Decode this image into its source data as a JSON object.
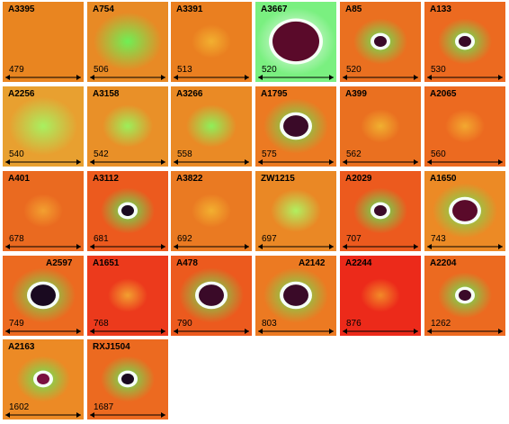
{
  "panels": [
    {
      "name": "A3395",
      "value": "479",
      "blob": "none",
      "bg": "#e98520",
      "halo": "#f0a030",
      "core": "none"
    },
    {
      "name": "A754",
      "value": "506",
      "blob": "wide",
      "bg": "#e88a25",
      "halo": "#6fef55",
      "core": "none"
    },
    {
      "name": "A3391",
      "value": "513",
      "blob": "faint",
      "bg": "#ea7f20",
      "halo": "#f2b030",
      "core": "none"
    },
    {
      "name": "A3667",
      "value": "520",
      "blob": "huge",
      "bg": "#7af080",
      "halo": "#fafafa",
      "core": "#5a0a2a"
    },
    {
      "name": "A85",
      "value": "520",
      "blob": "core-small",
      "bg": "#ea7020",
      "halo": "#66e858",
      "core": "#3a0a28"
    },
    {
      "name": "A133",
      "value": "530",
      "blob": "core-small",
      "bg": "#ec6a20",
      "halo": "#66e858",
      "core": "#3a0a28"
    },
    {
      "name": "A2256",
      "value": "540",
      "blob": "wide",
      "bg": "#e8a030",
      "halo": "#a8f060",
      "core": "none"
    },
    {
      "name": "A3158",
      "value": "542",
      "blob": "medium",
      "bg": "#e99028",
      "halo": "#9cef5a",
      "core": "none"
    },
    {
      "name": "A3266",
      "value": "558",
      "blob": "medium",
      "bg": "#ea8a25",
      "halo": "#8ef05a",
      "core": "none"
    },
    {
      "name": "A1795",
      "value": "575",
      "blob": "core-big",
      "bg": "#ec7a22",
      "halo": "#60e858",
      "core": "#3a0a28"
    },
    {
      "name": "A399",
      "value": "562",
      "blob": "faint",
      "bg": "#ea7020",
      "halo": "#f0b030",
      "core": "none"
    },
    {
      "name": "A2065",
      "value": "560",
      "blob": "faint",
      "bg": "#ec6a20",
      "halo": "#f2a830",
      "core": "none"
    },
    {
      "name": "A401",
      "value": "678",
      "blob": "faint",
      "bg": "#ea6a20",
      "halo": "#f2a030",
      "core": "none"
    },
    {
      "name": "A3112",
      "value": "681",
      "blob": "core-small",
      "bg": "#ec5a1e",
      "halo": "#60e858",
      "core": "#1a0a20"
    },
    {
      "name": "A3822",
      "value": "692",
      "blob": "faint",
      "bg": "#ea7a22",
      "halo": "#f2b030",
      "core": "none"
    },
    {
      "name": "ZW1215",
      "value": "697",
      "blob": "medium",
      "bg": "#ea8825",
      "halo": "#b0f060",
      "core": "none"
    },
    {
      "name": "A2029",
      "value": "707",
      "blob": "core-small",
      "bg": "#ec5a1e",
      "halo": "#60e858",
      "core": "#3a0a28"
    },
    {
      "name": "A1650",
      "value": "743",
      "blob": "core-big",
      "bg": "#ec8a25",
      "halo": "#66e858",
      "core": "#5a0a2a"
    },
    {
      "name": "A2597",
      "value": "749",
      "blob": "core-big",
      "bg": "#ec6a20",
      "halo": "#66e858",
      "core": "#1a0a20"
    },
    {
      "name": "A1651",
      "value": "768",
      "blob": "faint",
      "bg": "#ec3a1c",
      "halo": "#f2a030",
      "core": "none"
    },
    {
      "name": "A478",
      "value": "790",
      "blob": "core-big",
      "bg": "#ec5a1e",
      "halo": "#66e858",
      "core": "#3a0a28"
    },
    {
      "name": "A2142",
      "value": "803",
      "blob": "core-big",
      "bg": "#ec7a22",
      "halo": "#66e858",
      "core": "#3a0a28"
    },
    {
      "name": "A2244",
      "value": "876",
      "blob": "faint",
      "bg": "#ec2a1a",
      "halo": "#f28a28",
      "core": "none"
    },
    {
      "name": "A2204",
      "value": "1262",
      "blob": "core-small",
      "bg": "#ec6a20",
      "halo": "#66e858",
      "core": "#3a0a28"
    },
    {
      "name": "A2163",
      "value": "1602",
      "blob": "core-small",
      "bg": "#ec8a25",
      "halo": "#66e858",
      "core": "#7a1040"
    },
    {
      "name": "RXJ1504",
      "value": "1687",
      "blob": "core-small",
      "bg": "#ec6a20",
      "halo": "#66e858",
      "core": "#1a0a20"
    }
  ]
}
